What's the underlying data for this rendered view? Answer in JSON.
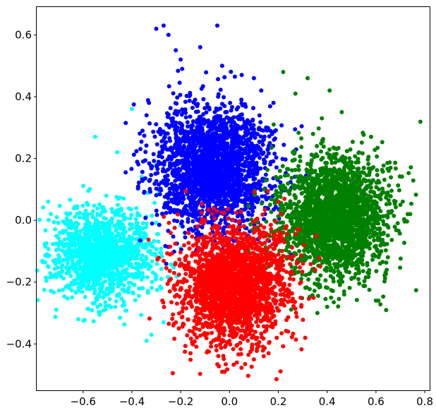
{
  "chart_data": {
    "type": "scatter",
    "title": "",
    "xlabel": "",
    "ylabel": "",
    "xlim": [
      -0.79,
      0.82
    ],
    "ylim": [
      -0.55,
      0.69
    ],
    "x_ticks": [
      -0.6,
      -0.4,
      -0.2,
      0.0,
      0.2,
      0.4,
      0.6,
      0.8
    ],
    "x_tick_labels": [
      "−0.6",
      "−0.4",
      "−0.2",
      "0.0",
      "0.2",
      "0.4",
      "0.6",
      "0.8"
    ],
    "y_ticks": [
      -0.4,
      -0.2,
      0.0,
      0.2,
      0.4,
      0.6
    ],
    "y_tick_labels": [
      "−0.4",
      "−0.2",
      "0.0",
      "0.2",
      "0.4",
      "0.6"
    ],
    "grid": false,
    "legend": "none",
    "marker_size": 6,
    "series": [
      {
        "color": "#00ffff",
        "center": [
          -0.52,
          -0.11
        ],
        "spread": [
          0.1,
          0.075
        ],
        "count": 1400,
        "x": [
          -0.7,
          -0.68,
          -0.65,
          -0.55,
          -0.46,
          -0.4,
          -0.36,
          -0.34,
          -0.32,
          -0.3,
          -0.29,
          -0.27,
          -0.5,
          -0.58
        ],
        "y": [
          -0.08,
          -0.13,
          -0.18,
          0.27,
          0.22,
          0.36,
          0.14,
          -0.39,
          -0.37,
          0.18,
          0.09,
          -0.33,
          -0.24,
          0.05
        ]
      },
      {
        "color": "#0000ff",
        "center": [
          -0.07,
          0.17
        ],
        "spread": [
          0.12,
          0.1
        ],
        "count": 2200,
        "x": [
          -0.3,
          -0.27,
          -0.25,
          -0.2,
          -0.12,
          -0.05,
          -0.03,
          0.05,
          0.1,
          0.13,
          0.18,
          -0.22,
          -0.33,
          0.15
        ],
        "y": [
          0.62,
          0.63,
          0.6,
          0.52,
          0.56,
          0.63,
          0.5,
          0.47,
          0.46,
          0.42,
          0.38,
          0.55,
          0.38,
          0.3
        ]
      },
      {
        "color": "#008000",
        "center": [
          0.43,
          0.01
        ],
        "spread": [
          0.11,
          0.1
        ],
        "count": 2200,
        "x": [
          0.22,
          0.27,
          0.32,
          0.41,
          0.46,
          0.58,
          0.66,
          0.7,
          0.73,
          0.74,
          0.61,
          0.47,
          0.4,
          0.36
        ],
        "y": [
          0.48,
          0.41,
          0.46,
          0.42,
          0.35,
          0.27,
          0.17,
          0.05,
          0.02,
          0.02,
          -0.26,
          -0.24,
          -0.28,
          -0.3
        ]
      },
      {
        "color": "#ff0000",
        "center": [
          0.02,
          -0.21
        ],
        "spread": [
          0.11,
          0.095
        ],
        "count": 2200,
        "x": [
          -0.22,
          -0.23,
          -0.16,
          -0.03,
          -0.02,
          0.03,
          0.1,
          0.16,
          0.24,
          0.31,
          0.35,
          0.2,
          -0.1,
          -0.19
        ],
        "y": [
          -0.33,
          -0.34,
          -0.43,
          -0.49,
          -0.49,
          -0.46,
          -0.45,
          -0.43,
          -0.36,
          -0.38,
          -0.16,
          0.06,
          0.0,
          -0.27
        ]
      }
    ]
  }
}
